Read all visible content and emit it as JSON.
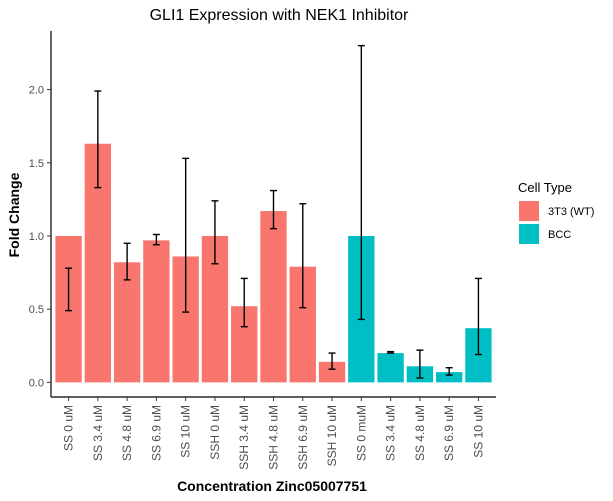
{
  "chart_data": {
    "type": "bar",
    "title": "GLI1 Expression with NEK1 Inhibitor",
    "xlabel": "Concentration Zinc05007751",
    "ylabel": "Fold Change",
    "ylim": [
      -0.1,
      2.4
    ],
    "yticks": [
      0.0,
      0.5,
      1.0,
      1.5,
      2.0
    ],
    "ytick_labels": [
      "0.0",
      "0.5",
      "1.0",
      "1.5",
      "2.0"
    ],
    "grid": false,
    "legend": {
      "title": "Cell Type",
      "position": "right",
      "entries": [
        {
          "name": "3T3 (WT)",
          "color": "#F8766D"
        },
        {
          "name": "BCC",
          "color": "#00BFC4"
        }
      ]
    },
    "categories": [
      "SS 0 uM",
      "SS 3.4 uM",
      "SS 4.8 uM",
      "SS 6.9 uM",
      "SS 10 uM",
      "SSH 0 uM",
      "SSH 3.4 uM",
      "SSH 4.8 uM",
      "SSH 6.9 uM",
      "SSH 10 uM",
      "SS 0 muM",
      "SS 3.4 uM",
      "SS 4.8 uM",
      "SS 6.9 uM",
      "SS 10 uM"
    ],
    "group": [
      "3T3 (WT)",
      "3T3 (WT)",
      "3T3 (WT)",
      "3T3 (WT)",
      "3T3 (WT)",
      "3T3 (WT)",
      "3T3 (WT)",
      "3T3 (WT)",
      "3T3 (WT)",
      "3T3 (WT)",
      "BCC",
      "BCC",
      "BCC",
      "BCC",
      "BCC"
    ],
    "values": [
      1.0,
      1.63,
      0.82,
      0.97,
      0.86,
      1.0,
      0.52,
      1.17,
      0.79,
      0.14,
      1.0,
      0.2,
      0.11,
      0.07,
      0.37
    ],
    "error_low": [
      0.49,
      1.33,
      0.7,
      0.94,
      0.48,
      0.81,
      0.38,
      1.05,
      0.51,
      0.09,
      0.43,
      0.2,
      0.03,
      0.05,
      0.19
    ],
    "error_high": [
      0.78,
      1.99,
      0.95,
      1.01,
      1.53,
      1.24,
      0.71,
      1.31,
      1.22,
      0.2,
      2.3,
      0.21,
      0.22,
      0.1,
      0.71
    ]
  }
}
